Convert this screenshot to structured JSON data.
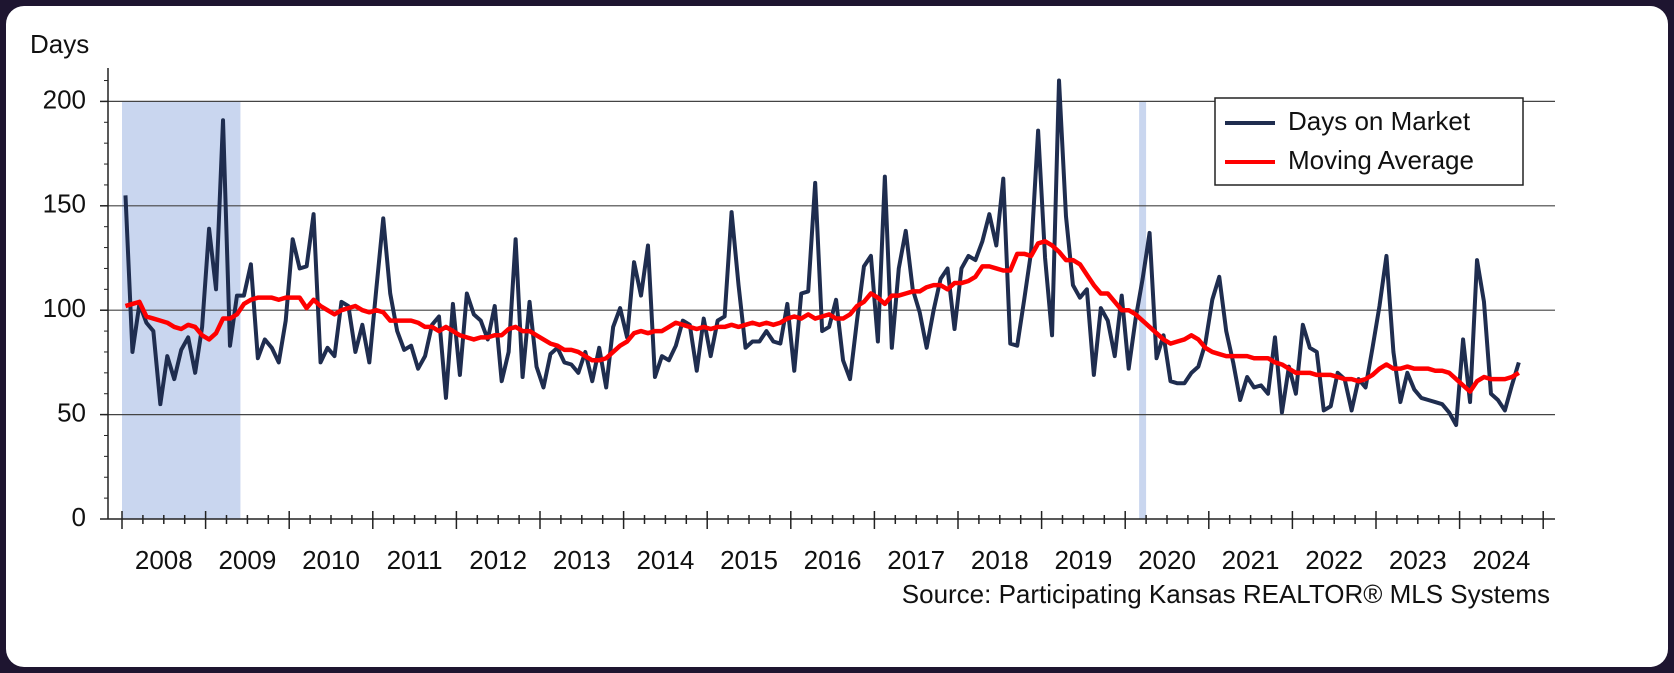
{
  "chart_data": {
    "type": "line",
    "y_label": "Days",
    "source": "Source: Participating Kansas REALTOR® MLS Systems",
    "categories": [
      null,
      null,
      null,
      null,
      null,
      null,
      "2008",
      null,
      null,
      null,
      null,
      null,
      null,
      null,
      null,
      null,
      null,
      null,
      "2009",
      null,
      null,
      null,
      null,
      null,
      null,
      null,
      null,
      null,
      null,
      null,
      "2010",
      null,
      null,
      null,
      null,
      null,
      null,
      null,
      null,
      null,
      null,
      null,
      "2011",
      null,
      null,
      null,
      null,
      null,
      null,
      null,
      null,
      null,
      null,
      null,
      "2012",
      null,
      null,
      null,
      null,
      null,
      null,
      null,
      null,
      null,
      null,
      null,
      "2013",
      null,
      null,
      null,
      null,
      null,
      null,
      null,
      null,
      null,
      null,
      null,
      "2014",
      null,
      null,
      null,
      null,
      null,
      null,
      null,
      null,
      null,
      null,
      null,
      "2015",
      null,
      null,
      null,
      null,
      null,
      null,
      null,
      null,
      null,
      null,
      null,
      "2016",
      null,
      null,
      null,
      null,
      null,
      null,
      null,
      null,
      null,
      null,
      null,
      "2017",
      null,
      null,
      null,
      null,
      null,
      null,
      null,
      null,
      null,
      null,
      null,
      "2018",
      null,
      null,
      null,
      null,
      null,
      null,
      null,
      null,
      null,
      null,
      null,
      "2019",
      null,
      null,
      null,
      null,
      null,
      null,
      null,
      null,
      null,
      null,
      null,
      "2020",
      null,
      null,
      null,
      null,
      null,
      null,
      null,
      null,
      null,
      null,
      null,
      "2021",
      null,
      null,
      null,
      null,
      null,
      null,
      null,
      null,
      null,
      null,
      null,
      "2022",
      null,
      null,
      null,
      null,
      null,
      null,
      null,
      null,
      null,
      null,
      null,
      "2023",
      null,
      null,
      null,
      null,
      null,
      null,
      null,
      null,
      null,
      null,
      null,
      "2024",
      null,
      null
    ],
    "series": [
      {
        "name": "Days on Market",
        "color": "#1f2d4f",
        "values": [
          155,
          80,
          103,
          94,
          90,
          55,
          78,
          67,
          81,
          87,
          70,
          92,
          139,
          110,
          191,
          83,
          107,
          107,
          122,
          77,
          86,
          82,
          75,
          95,
          134,
          120,
          121,
          146,
          75,
          82,
          78,
          104,
          102,
          80,
          93,
          75,
          110,
          144,
          108,
          90,
          81,
          83,
          72,
          78,
          93,
          97,
          58,
          103,
          69,
          108,
          98,
          95,
          86,
          102,
          66,
          80,
          134,
          68,
          104,
          73,
          63,
          79,
          82,
          75,
          74,
          70,
          80,
          66,
          82,
          63,
          92,
          101,
          87,
          123,
          107,
          131,
          68,
          78,
          76,
          83,
          95,
          93,
          71,
          96,
          78,
          95,
          97,
          147,
          112,
          82,
          85,
          85,
          90,
          85,
          84,
          103,
          71,
          108,
          109,
          161,
          90,
          92,
          105,
          76,
          67,
          95,
          121,
          126,
          85,
          164,
          82,
          120,
          138,
          110,
          99,
          82,
          100,
          115,
          120,
          91,
          120,
          126,
          124,
          133,
          146,
          131,
          163,
          84,
          83,
          105,
          128,
          186,
          125,
          88,
          210,
          145,
          112,
          106,
          110,
          69,
          101,
          95,
          78,
          107,
          72,
          96,
          115,
          137,
          77,
          88,
          66,
          65,
          65,
          70,
          73,
          84,
          105,
          116,
          90,
          75,
          57,
          68,
          63,
          64,
          60,
          87,
          51,
          73,
          60,
          93,
          82,
          80,
          52,
          54,
          70,
          67,
          52,
          67,
          63,
          82,
          102,
          126,
          80,
          56,
          70,
          62,
          58,
          57,
          56,
          55,
          51,
          45,
          86,
          56,
          124,
          104,
          60,
          57,
          52,
          64,
          75
        ]
      },
      {
        "name": "Moving Average",
        "color": "#ff0000",
        "values": [
          102,
          103,
          104,
          97,
          96,
          95,
          94,
          92,
          91,
          93,
          92,
          88,
          86,
          89,
          96,
          96,
          98,
          103,
          105,
          106,
          106,
          106,
          105,
          106,
          106,
          106,
          101,
          105,
          102,
          100,
          98,
          100,
          101,
          102,
          100,
          99,
          100,
          99,
          95,
          95,
          95,
          95,
          94,
          92,
          92,
          90,
          92,
          90,
          88,
          87,
          86,
          87,
          87,
          88,
          88,
          91,
          92,
          90,
          90,
          88,
          86,
          84,
          83,
          81,
          81,
          80,
          78,
          76,
          76,
          77,
          80,
          83,
          85,
          89,
          90,
          89,
          90,
          90,
          92,
          94,
          93,
          92,
          91,
          92,
          91,
          92,
          92,
          93,
          92,
          93,
          94,
          93,
          94,
          93,
          94,
          96,
          97,
          96,
          98,
          96,
          97,
          98,
          96,
          96,
          98,
          102,
          104,
          108,
          106,
          103,
          107,
          107,
          108,
          109,
          109,
          111,
          112,
          112,
          110,
          113,
          113,
          114,
          116,
          121,
          121,
          120,
          119,
          119,
          127,
          127,
          126,
          132,
          133,
          131,
          128,
          124,
          124,
          122,
          117,
          112,
          108,
          108,
          104,
          100,
          100,
          98,
          95,
          92,
          89,
          86,
          84,
          85,
          86,
          88,
          86,
          82,
          80,
          79,
          78,
          78,
          78,
          78,
          77,
          77,
          77,
          75,
          74,
          72,
          70,
          70,
          70,
          69,
          69,
          69,
          68,
          67,
          67,
          66,
          67,
          69,
          72,
          74,
          72,
          72,
          73,
          72,
          72,
          72,
          71,
          71,
          70,
          67,
          64,
          61,
          66,
          68,
          67,
          67,
          67,
          68,
          70
        ]
      }
    ],
    "ylim": [
      0,
      216
    ],
    "yticks": [
      0,
      50,
      100,
      150,
      200
    ],
    "grid": true,
    "legend": "upper right",
    "shade_color": "#c9d6ef"
  }
}
